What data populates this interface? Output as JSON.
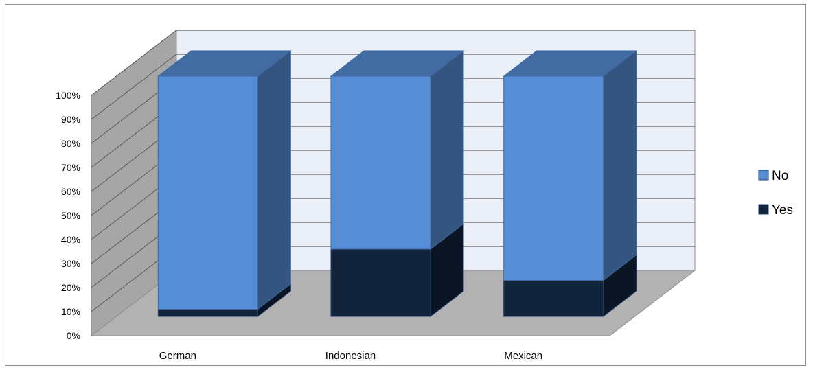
{
  "chart_data": {
    "type": "bar",
    "stacked": true,
    "percent_stacked": true,
    "style": "3d",
    "title": "",
    "xlabel": "",
    "ylabel": "",
    "categories": [
      "German",
      "Indonesian",
      "Mexican"
    ],
    "series": [
      {
        "name": "Yes",
        "values": [
          3,
          28,
          15
        ],
        "color": "#12233c"
      },
      {
        "name": "No",
        "values": [
          97,
          72,
          85
        ],
        "color": "#568ed6"
      }
    ],
    "ylim": [
      0,
      100
    ],
    "yticks": [
      "0%",
      "10%",
      "20%",
      "30%",
      "40%",
      "50%",
      "60%",
      "70%",
      "80%",
      "90%",
      "100%"
    ],
    "grid": true,
    "legend": {
      "position": "right",
      "order": [
        "No",
        "Yes"
      ]
    }
  }
}
